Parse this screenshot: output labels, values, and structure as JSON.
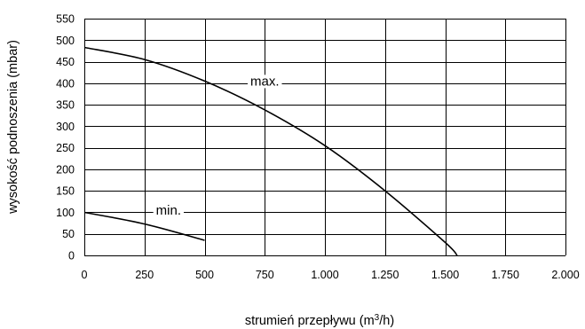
{
  "chart_data": {
    "type": "line",
    "xlabel": "strumień przepływu (m",
    "xlabel_sup": "3",
    "xlabel_tail": "/h)",
    "ylabel": "wysokość podnoszenia (mbar)",
    "xlim": [
      0,
      2000
    ],
    "ylim": [
      0,
      550
    ],
    "grid": true,
    "x_ticks": [
      0,
      250,
      500,
      750,
      1000,
      1250,
      1500,
      1750,
      2000
    ],
    "x_tick_labels": [
      "0",
      "250",
      "500",
      "750",
      "1.000",
      "1.250",
      "1.500",
      "1.750",
      "2.000"
    ],
    "y_ticks": [
      0,
      50,
      100,
      150,
      200,
      250,
      300,
      350,
      400,
      450,
      500,
      550
    ],
    "y_tick_labels": [
      "0",
      "50",
      "100",
      "150",
      "200",
      "250",
      "300",
      "350",
      "400",
      "450",
      "500",
      "550"
    ],
    "series": [
      {
        "name": "max.",
        "x": [
          0,
          250,
          500,
          750,
          1000,
          1250,
          1500,
          1550
        ],
        "y": [
          483,
          455,
          405,
          338,
          255,
          150,
          30,
          0
        ]
      },
      {
        "name": "min.",
        "x": [
          0,
          250,
          500
        ],
        "y": [
          100,
          73,
          35
        ]
      }
    ],
    "annotations": [
      {
        "text": "max.",
        "x": 750,
        "y": 405,
        "series": 0
      },
      {
        "text": "min.",
        "x": 350,
        "y": 105,
        "series": 1
      }
    ]
  }
}
